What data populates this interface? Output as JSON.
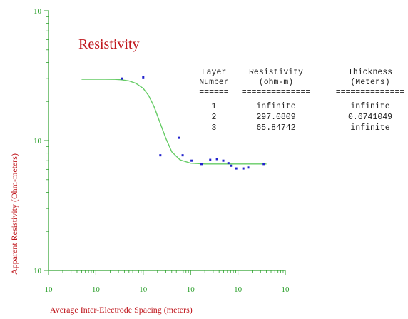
{
  "chart_data": {
    "type": "scatter",
    "title": "Resistivity",
    "xlabel": "Average Inter-Electrode Spacing (meters)",
    "ylabel": "Apparent Resistivity (Ohm-meters)",
    "x_scale": "log",
    "y_scale": "log",
    "x_tick_labels": [
      "10",
      "10",
      "10",
      "10",
      "10",
      "10"
    ],
    "y_tick_labels": [
      "10",
      "10",
      "10"
    ],
    "xlim": [
      0.01,
      1000
    ],
    "ylim": [
      10,
      1000
    ],
    "grid": false,
    "colors": {
      "curve": "#66cc66",
      "points": "#2222cc",
      "axes": "#2ca02c",
      "labels": "#c0171d"
    },
    "series": [
      {
        "type": "scatter",
        "x": [
          0.35,
          1.0,
          2.3,
          5.8,
          6.8,
          10.5,
          17,
          26,
          36,
          49,
          63,
          71,
          92,
          130,
          165,
          350
        ],
        "y": [
          300,
          307,
          77,
          105,
          77,
          70,
          66,
          71,
          72,
          70,
          67,
          64,
          61,
          61,
          62,
          66
        ]
      },
      {
        "type": "line",
        "x": [
          0.05,
          0.15,
          0.25,
          0.35,
          0.5,
          0.7,
          1.0,
          1.3,
          1.7,
          2.2,
          3.0,
          4.0,
          6.0,
          10,
          20,
          50,
          100,
          200,
          400
        ],
        "y": [
          297,
          297,
          296,
          294,
          288,
          276,
          252,
          222,
          182,
          141,
          104,
          82,
          71,
          67,
          66,
          66,
          66,
          66,
          66
        ]
      }
    ],
    "table": {
      "headers": [
        [
          "Layer",
          "Number"
        ],
        [
          "Resistivity",
          "(ohm-m)"
        ],
        [
          "Thickness",
          "(Meters)"
        ]
      ],
      "separators": [
        "======",
        "==============",
        "=============="
      ],
      "rows": [
        [
          "1",
          "infinite",
          "infinite"
        ],
        [
          "2",
          "297.0809",
          "0.6741049"
        ],
        [
          "3",
          "65.84742",
          "infinite"
        ]
      ]
    }
  }
}
